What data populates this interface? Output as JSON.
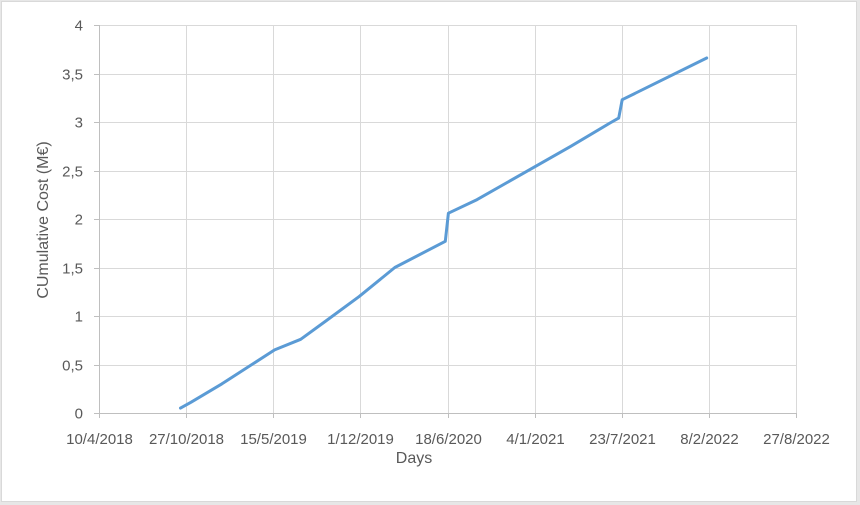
{
  "chart_data": {
    "type": "line",
    "title": "",
    "xlabel": "Days",
    "ylabel": "CUmulative Cost (M€)",
    "x_scale": "date",
    "xlim": [
      "2018-04-10",
      "2022-08-27"
    ],
    "ylim": [
      0,
      4
    ],
    "grid": true,
    "legend": "none",
    "line_color": "#5b9bd5",
    "grid_color": "#d9d9d9",
    "x_ticks": [
      {
        "date": "2018-04-10",
        "label": "10/4/2018"
      },
      {
        "date": "2018-10-27",
        "label": "27/10/2018"
      },
      {
        "date": "2019-05-15",
        "label": "15/5/2019"
      },
      {
        "date": "2019-12-01",
        "label": "1/12/2019"
      },
      {
        "date": "2020-06-18",
        "label": "18/6/2020"
      },
      {
        "date": "2021-01-04",
        "label": "4/1/2021"
      },
      {
        "date": "2021-07-23",
        "label": "23/7/2021"
      },
      {
        "date": "2022-02-08",
        "label": "8/2/2022"
      },
      {
        "date": "2022-08-27",
        "label": "27/8/2022"
      }
    ],
    "y_ticks": [
      {
        "value": 0,
        "label": "0"
      },
      {
        "value": 0.5,
        "label": "0,5"
      },
      {
        "value": 1,
        "label": "1"
      },
      {
        "value": 1.5,
        "label": "1,5"
      },
      {
        "value": 2,
        "label": "2"
      },
      {
        "value": 2.5,
        "label": "2,5"
      },
      {
        "value": 3,
        "label": "3"
      },
      {
        "value": 3.5,
        "label": "3,5"
      },
      {
        "value": 4,
        "label": "4"
      }
    ],
    "series": [
      {
        "points": [
          {
            "x": "2018-10-14",
            "y": 0.05
          },
          {
            "x": "2018-11-07",
            "y": 0.11
          },
          {
            "x": "2019-01-17",
            "y": 0.3
          },
          {
            "x": "2019-05-18",
            "y": 0.65
          },
          {
            "x": "2019-07-17",
            "y": 0.76
          },
          {
            "x": "2019-09-13",
            "y": 0.95
          },
          {
            "x": "2019-11-28",
            "y": 1.2
          },
          {
            "x": "2020-02-18",
            "y": 1.5
          },
          {
            "x": "2020-06-13",
            "y": 1.77
          },
          {
            "x": "2020-06-20",
            "y": 2.06
          },
          {
            "x": "2020-08-25",
            "y": 2.2
          },
          {
            "x": "2021-03-28",
            "y": 2.75
          },
          {
            "x": "2021-06-26",
            "y": 2.99
          },
          {
            "x": "2021-07-16",
            "y": 3.04
          },
          {
            "x": "2021-07-24",
            "y": 3.23
          },
          {
            "x": "2022-02-03",
            "y": 3.66
          }
        ]
      }
    ]
  }
}
